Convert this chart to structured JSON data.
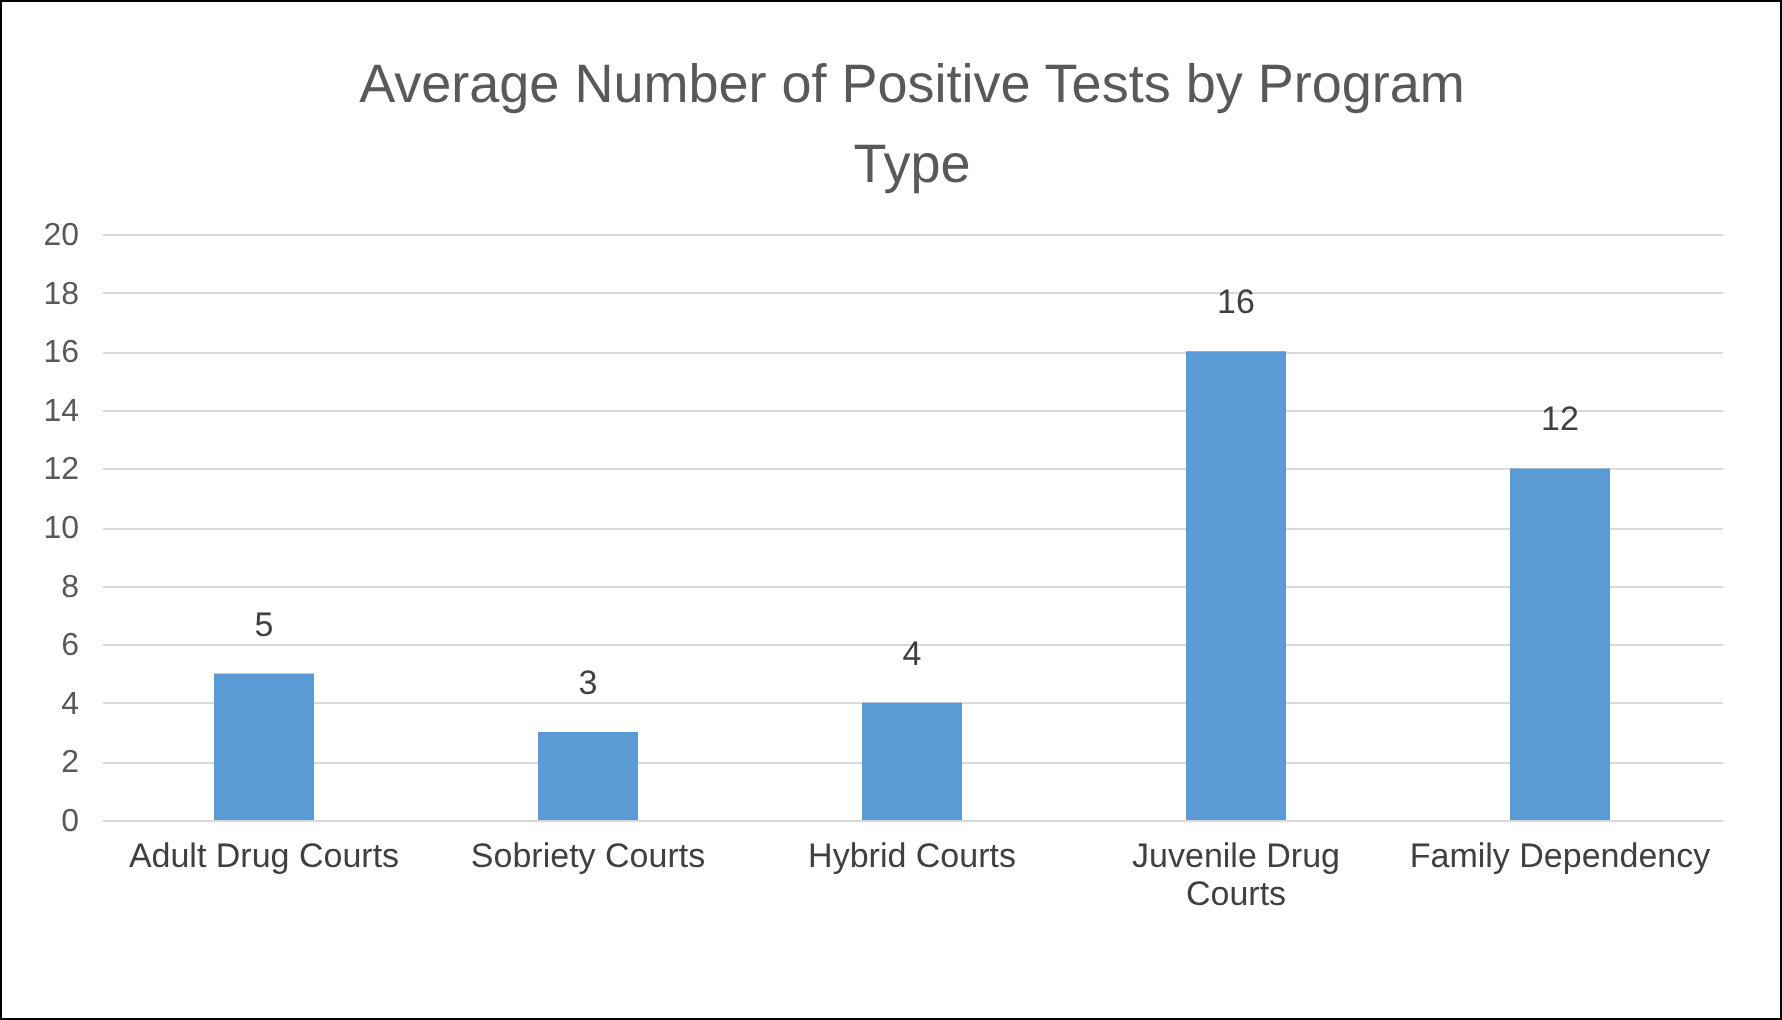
{
  "chart_data": {
    "type": "bar",
    "title": "Average Number of Positive Tests by Program Type",
    "categories": [
      "Adult Drug Courts",
      "Sobriety Courts",
      "Hybrid Courts",
      "Juvenile Drug Courts",
      "Family Dependency"
    ],
    "values": [
      5,
      3,
      4,
      16,
      12
    ],
    "color": "#5b9bd5",
    "ylim": [
      0,
      20
    ],
    "yticks": [
      0,
      2,
      4,
      6,
      8,
      10,
      12,
      14,
      16,
      18,
      20
    ],
    "grid": "y",
    "data_labels": true
  }
}
